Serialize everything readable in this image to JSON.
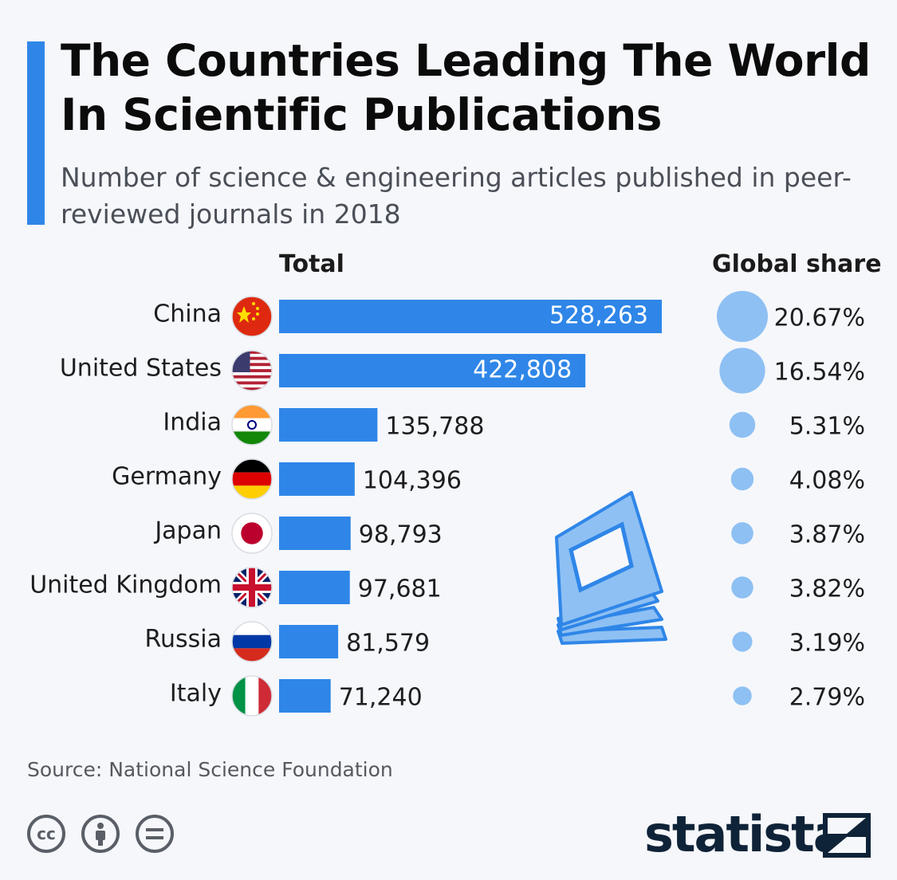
{
  "header": {
    "title": "The Countries Leading The World In Scientific Publications",
    "subtitle": "Number of science & engineering articles published in peer-reviewed journals in 2018"
  },
  "colors": {
    "accent": "#2f86e8",
    "bar": "#2f86e8",
    "bubble": "#8ec0f3",
    "text": "#1d1d1f"
  },
  "columns": {
    "total": "Total",
    "share": "Global share"
  },
  "chart_data": {
    "type": "bar",
    "orientation": "horizontal",
    "title": "The Countries Leading The World In Scientific Publications",
    "categories": [
      "China",
      "United States",
      "India",
      "Germany",
      "Japan",
      "United Kingdom",
      "Russia",
      "Italy"
    ],
    "series": [
      {
        "name": "Total",
        "values": [
          528263,
          422808,
          135788,
          104396,
          98793,
          97681,
          81579,
          71240
        ]
      },
      {
        "name": "Global share",
        "values": [
          20.67,
          16.54,
          5.31,
          4.08,
          3.87,
          3.82,
          3.19,
          2.79
        ]
      }
    ],
    "value_labels": [
      "528,263",
      "422,808",
      "135,788",
      "104,396",
      "98,793",
      "97,681",
      "81,579",
      "71,240"
    ],
    "share_labels": [
      "20.67%",
      "16.54%",
      "5.31%",
      "4.08%",
      "3.87%",
      "3.82%",
      "3.19%",
      "2.79%"
    ],
    "flags": [
      "china-flag",
      "usa-flag",
      "india-flag",
      "germany-flag",
      "japan-flag",
      "uk-flag",
      "russia-flag",
      "italy-flag"
    ],
    "xlim": [
      0,
      528263
    ],
    "grid": false
  },
  "footer": {
    "source": "Source: National Science Foundation",
    "brand": "statista",
    "license_icons": [
      "cc-icon",
      "attribution-icon",
      "no-derivatives-icon"
    ],
    "cc_label": "cc"
  }
}
